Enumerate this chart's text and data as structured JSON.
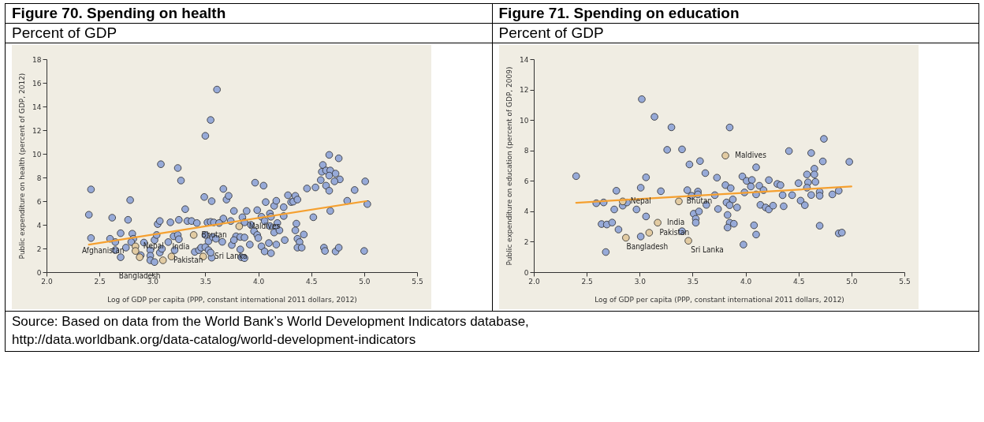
{
  "chart_data": [
    {
      "type": "scatter",
      "title": "Figure 70. Spending on health",
      "subtitle": "Percent of GDP",
      "xlabel": "Log of GDP per capita (PPP, constant international 2011 dollars, 2012)",
      "ylabel": "Public expenditure on health (percent of GDP, 2012)",
      "xlim": [
        2,
        5.5
      ],
      "ylim": [
        0,
        18
      ],
      "xticks": [
        {
          "value": 2,
          "label": "2.0"
        },
        {
          "value": 2.5,
          "label": "2.5"
        },
        {
          "value": 3,
          "label": "3.0"
        },
        {
          "value": 3.5,
          "label": "3.5"
        },
        {
          "value": 4,
          "label": "4.0"
        },
        {
          "value": 4.5,
          "label": "4.5"
        },
        {
          "value": 5,
          "label": "5.0"
        },
        {
          "value": 5.5,
          "label": "5.5"
        }
      ],
      "yticks": [
        0,
        2,
        4,
        6,
        8,
        10,
        12,
        14,
        16,
        18
      ],
      "marker": "circle",
      "series": [
        {
          "type": "scatter",
          "color": "#97aad8",
          "x": [
            2.4,
            2.42,
            2.42,
            2.62,
            2.6,
            2.65,
            2.65,
            2.7,
            2.7,
            2.77,
            2.79,
            2.75,
            2.81,
            2.82,
            2.8,
            2.92,
            2.89,
            2.98,
            2.98,
            2.98,
            3.02,
            3.02,
            3.04,
            3.05,
            3.07,
            3.08,
            3.07,
            3.09,
            3.15,
            3.17,
            3.2,
            3.21,
            3.24,
            3.25,
            3.24,
            3.27,
            3.25,
            3.31,
            3.33,
            3.37,
            3.42,
            3.4,
            3.44,
            3.46,
            3.5,
            3.49,
            3.5,
            3.55,
            3.61,
            3.56,
            3.53,
            3.56,
            3.55,
            3.5,
            3.53,
            3.57,
            3.6,
            3.66,
            3.67,
            3.7,
            3.72,
            3.67,
            3.52,
            3.55,
            3.58,
            3.63,
            3.77,
            3.74,
            3.85,
            3.89,
            3.87,
            3.93,
            3.96,
            3.99,
            4.0,
            3.79,
            3.83,
            3.87,
            3.75,
            3.77,
            3.92,
            3.83,
            3.84,
            3.87,
            3.97,
            4.05,
            3.99,
            4.03,
            4.07,
            4.06,
            4.11,
            4.12,
            4.11,
            4.15,
            4.17,
            4.18,
            4.17,
            4.15,
            4.2,
            4.24,
            4.24,
            4.25,
            4.03,
            4.06,
            4.1,
            4.12,
            4.17,
            4.28,
            4.31,
            4.33,
            4.35,
            4.37,
            4.36,
            4.35,
            4.37,
            4.39,
            4.43,
            4.37,
            4.41,
            4.46,
            4.54,
            4.52,
            4.67,
            4.76,
            4.61,
            4.6,
            4.64,
            4.68,
            4.73,
            4.67,
            4.77,
            4.59,
            4.72,
            4.64,
            4.67,
            4.68,
            4.84,
            4.91,
            5.01,
            5.03,
            4.62,
            4.63,
            4.73,
            4.76,
            5.0
          ],
          "values": [
            4.85,
            6.99,
            2.88,
            4.6,
            2.82,
            2.54,
            1.86,
            1.26,
            3.29,
            4.42,
            6.09,
            2.07,
            3.25,
            2.82,
            2.54,
            2.5,
            1.43,
            1.86,
            1.39,
            1.0,
            0.85,
            2.71,
            3.14,
            4.06,
            4.32,
            9.12,
            1.65,
            1.97,
            2.54,
            4.21,
            3.03,
            1.86,
            3.14,
            4.42,
            8.8,
            7.74,
            2.78,
            5.32,
            4.32,
            4.32,
            4.15,
            1.71,
            1.86,
            2.07,
            2.12,
            6.35,
            11.52,
            12.86,
            15.43,
            6.0,
            1.86,
            1.22,
            1.65,
            3.14,
            2.61,
            2.97,
            2.82,
            2.56,
            7.03,
            6.13,
            6.45,
            4.53,
            4.2,
            4.25,
            4.2,
            4.15,
            5.17,
            4.32,
            4.64,
            5.17,
            4.21,
            4.0,
            3.46,
            3.14,
            2.88,
            3.03,
            2.97,
            2.93,
            2.29,
            2.71,
            2.33,
            1.92,
            1.26,
            1.18,
            7.56,
            7.31,
            5.24,
            4.68,
            5.92,
            4.32,
            4.96,
            4.68,
            3.89,
            5.6,
            6.03,
            4.15,
            3.74,
            3.35,
            3.53,
            5.49,
            4.74,
            2.71,
            2.18,
            1.75,
            2.46,
            1.6,
            2.33,
            6.5,
            5.92,
            5.96,
            6.45,
            6.13,
            4.1,
            3.53,
            2.82,
            2.54,
            3.18,
            2.07,
            2.07,
            7.07,
            7.16,
            4.64,
            9.91,
            9.62,
            9.06,
            8.48,
            8.59,
            8.59,
            8.33,
            8.16,
            7.84,
            7.78,
            7.67,
            7.31,
            6.88,
            5.17,
            6.03,
            6.94,
            7.67,
            5.75,
            2.07,
            1.79,
            1.75,
            2.07,
            1.79
          ]
        },
        {
          "type": "scatter",
          "color": "#e2cba2",
          "x": [
            2.84,
            2.84,
            2.88,
            3.1,
            3.18,
            3.39,
            3.48,
            3.82
          ],
          "values": [
            2.18,
            1.79,
            1.26,
            1.0,
            1.32,
            3.14,
            1.32,
            3.87
          ]
        },
        {
          "type": "line",
          "marker": "none",
          "color": "#f5a030",
          "x": [
            2.4,
            5.02
          ],
          "values": [
            2.33,
            6.0
          ]
        }
      ],
      "annotations": [
        {
          "text": "Nepal",
          "x": 2.84,
          "y": 2.18
        },
        {
          "text": "Afghanistan",
          "x": 2.84,
          "y": 1.79
        },
        {
          "text": "Bangladesh",
          "x": 2.88,
          "y": 1.26
        },
        {
          "text": "Pakistan",
          "x": 3.1,
          "y": 1.0
        },
        {
          "text": "India",
          "x": 3.18,
          "y": 1.32
        },
        {
          "text": "Bhutan",
          "x": 3.39,
          "y": 3.14
        },
        {
          "text": "Sri Lanka",
          "x": 3.48,
          "y": 1.32
        },
        {
          "text": "Maldives",
          "x": 3.82,
          "y": 3.87
        },
        "Source: Based on data from the World Bank’s World Development Indicators database, http://data.worldbank.org/data-catalog/world-development-indicators"
      ]
    },
    {
      "type": "scatter",
      "title": "Figure 71. Spending on education",
      "subtitle": "Percent of GDP",
      "xlabel": "Log of GDP per capita (PPP, constant international 2011 dollars, 2012)",
      "ylabel": "Public expenditure on education (percent of GDP, 2009)",
      "xlim": [
        2,
        5.5
      ],
      "ylim": [
        0,
        14
      ],
      "xticks": [
        {
          "value": 2,
          "label": "2.0"
        },
        {
          "value": 2.5,
          "label": "2.5"
        },
        {
          "value": 3,
          "label": "3.0"
        },
        {
          "value": 3.5,
          "label": "3.5"
        },
        {
          "value": 4,
          "label": "4.0"
        },
        {
          "value": 4.5,
          "label": "4.5"
        },
        {
          "value": 5,
          "label": "5.0"
        },
        {
          "value": 5.5,
          "label": "5.5"
        }
      ],
      "yticks": [
        0,
        2,
        4,
        6,
        8,
        10,
        12,
        14
      ],
      "marker": "circle",
      "series": [
        {
          "type": "scatter",
          "color": "#97aad8",
          "x": [
            2.4,
            2.59,
            2.66,
            2.64,
            2.69,
            2.74,
            2.68,
            2.76,
            2.78,
            2.84,
            2.88,
            2.8,
            2.97,
            3.01,
            3.02,
            3.06,
            3.06,
            3.01,
            3.14,
            3.2,
            3.26,
            3.3,
            3.4,
            3.4,
            3.47,
            3.45,
            3.49,
            3.55,
            3.55,
            3.57,
            3.62,
            3.51,
            3.56,
            3.53,
            3.53,
            3.63,
            3.71,
            3.73,
            3.74,
            3.81,
            3.86,
            3.85,
            3.82,
            3.85,
            3.88,
            3.92,
            3.83,
            3.85,
            3.89,
            3.83,
            3.99,
            3.97,
            4.01,
            4.06,
            4.05,
            4.1,
            4.13,
            4.17,
            4.1,
            4.14,
            4.19,
            4.22,
            4.26,
            4.22,
            4.3,
            4.33,
            4.35,
            4.36,
            4.44,
            4.41,
            4.08,
            4.1,
            3.98,
            4.5,
            4.52,
            4.56,
            4.58,
            4.59,
            4.58,
            4.62,
            4.62,
            4.65,
            4.65,
            4.66,
            4.7,
            4.7,
            4.73,
            4.74,
            4.7,
            4.82,
            4.88,
            4.88,
            4.91,
            4.98
          ],
          "values": [
            6.31,
            4.53,
            4.58,
            3.16,
            3.13,
            3.26,
            1.32,
            4.12,
            5.35,
            4.37,
            4.58,
            2.8,
            4.12,
            5.55,
            11.37,
            6.23,
            3.66,
            2.34,
            10.21,
            5.32,
            8.04,
            9.52,
            8.07,
            2.69,
            7.08,
            5.39,
            5.02,
            5.3,
            5.11,
            7.3,
            6.51,
            3.84,
            3.99,
            3.51,
            3.25,
            4.42,
            5.06,
            6.21,
            4.15,
            5.72,
            5.52,
            9.51,
            4.58,
            4.4,
            4.78,
            4.25,
            3.76,
            3.25,
            3.18,
            2.93,
            5.24,
            6.29,
            6.0,
            6.06,
            5.63,
            6.89,
            5.68,
            5.39,
            5.11,
            4.42,
            4.25,
            4.12,
            4.37,
            6.05,
            5.8,
            5.72,
            5.06,
            4.33,
            5.06,
            7.96,
            3.08,
            2.47,
            1.81,
            5.85,
            4.7,
            4.4,
            6.42,
            5.9,
            5.55,
            5.07,
            7.83,
            6.8,
            6.42,
            5.93,
            5.27,
            5.02,
            7.28,
            8.76,
            3.05,
            5.11,
            5.35,
            2.55,
            2.6,
            7.25
          ]
        },
        {
          "type": "scatter",
          "color": "#e2cba2",
          "x": [
            2.84,
            2.87,
            3.09,
            3.17,
            3.37,
            3.46,
            3.81
          ],
          "values": [
            4.65,
            2.26,
            2.59,
            3.25,
            4.65,
            2.06,
            7.66
          ]
        },
        {
          "type": "line",
          "marker": "none",
          "color": "#f5a030",
          "x": [
            2.4,
            5.0
          ],
          "values": [
            4.56,
            5.63
          ]
        }
      ],
      "annotations": [
        {
          "text": "Nepal",
          "x": 2.84,
          "y": 4.65
        },
        {
          "text": "Bangladesh",
          "x": 2.87,
          "y": 2.26
        },
        {
          "text": "Pakistan",
          "x": 3.09,
          "y": 2.59
        },
        {
          "text": "India",
          "x": 3.17,
          "y": 3.25
        },
        {
          "text": "Bhutan",
          "x": 3.37,
          "y": 4.65
        },
        {
          "text": "Sri Lanka",
          "x": 3.46,
          "y": 2.06
        },
        {
          "text": "Maldives",
          "x": 3.81,
          "y": 7.66
        }
      ]
    }
  ]
}
